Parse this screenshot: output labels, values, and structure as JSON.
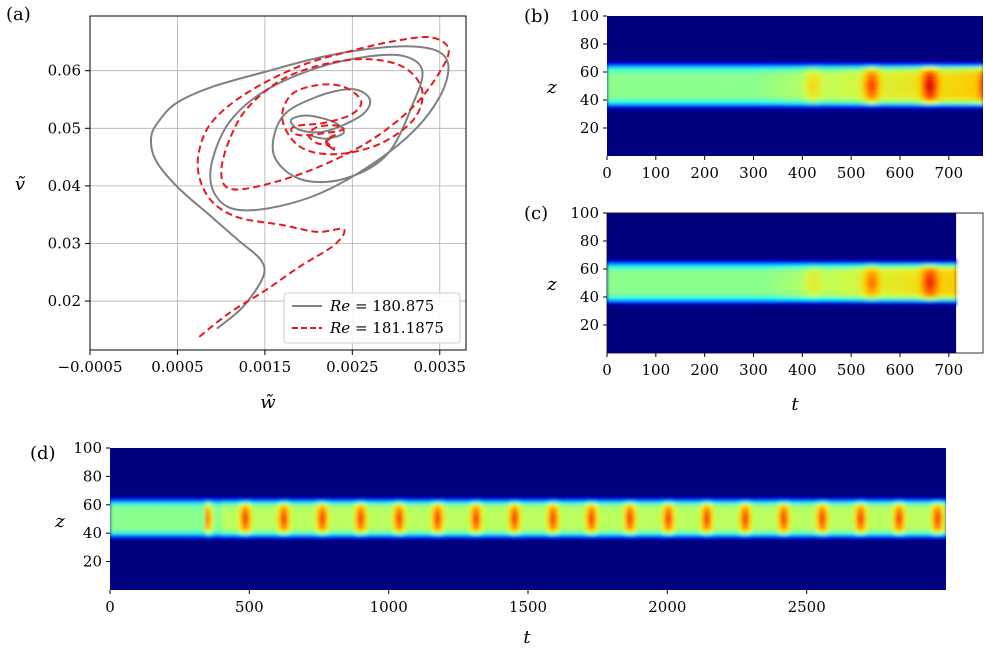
{
  "chart_data": [
    {
      "panel_label": "(a)",
      "type": "line",
      "xlabel": "w̃",
      "ylabel": "ṽ",
      "xlim": [
        -0.0005,
        0.0038
      ],
      "ylim": [
        0.0115,
        0.0695
      ],
      "xticks": [
        -0.0005,
        0.0005,
        0.0015,
        0.0025,
        0.0035
      ],
      "xtick_labels": [
        "−0.0005",
        "0.0005",
        "0.0015",
        "0.0025",
        "0.0035"
      ],
      "yticks": [
        0.02,
        0.03,
        0.04,
        0.05,
        0.06
      ],
      "ytick_labels": [
        "0.02",
        "0.03",
        "0.04",
        "0.05",
        "0.06"
      ],
      "grid": true,
      "legend_position": "lower-right",
      "series": [
        {
          "name": "Re = 180.875",
          "legend_label": "= 180.875",
          "color": "#808080",
          "style": "solid",
          "x": [
            0.00095,
            0.00125,
            0.00148,
            0.00145,
            0.0012,
            0.0009,
            0.0005,
            0.00025,
            0.0002,
            0.0003,
            0.0005,
            0.0009,
            0.0015,
            0.0021,
            0.0027,
            0.0032,
            0.0035,
            0.0036,
            0.0035,
            0.0032,
            0.0027,
            0.0021,
            0.0015,
            0.0011,
            0.0009,
            0.0009,
            0.0011,
            0.0015,
            0.0021,
            0.0027,
            0.0031,
            0.0033,
            0.0032,
            0.0029,
            0.0024,
            0.0019,
            0.0016,
            0.0017,
            0.0021,
            0.0025,
            0.0027,
            0.0026,
            0.0022,
            0.0019,
            0.0018,
            0.002,
            0.0023,
            0.0024,
            0.0022,
            0.002
          ],
          "y": [
            0.0152,
            0.019,
            0.0242,
            0.0272,
            0.0305,
            0.0345,
            0.0398,
            0.0445,
            0.0485,
            0.0515,
            0.0545,
            0.0572,
            0.0598,
            0.0622,
            0.0638,
            0.0642,
            0.0632,
            0.0605,
            0.0555,
            0.0495,
            0.0435,
            0.0385,
            0.036,
            0.0362,
            0.0395,
            0.0445,
            0.0512,
            0.0565,
            0.0605,
            0.0625,
            0.0625,
            0.06,
            0.0545,
            0.0455,
            0.0412,
            0.0412,
            0.0455,
            0.052,
            0.0555,
            0.0568,
            0.055,
            0.0522,
            0.0495,
            0.0497,
            0.0515,
            0.0522,
            0.051,
            0.0492,
            0.0482,
            0.0488
          ]
        },
        {
          "name": "Re = 181.1875",
          "legend_label": "= 181.1875",
          "color": "#e8181c",
          "style": "dashed",
          "x": [
            0.00075,
            0.0011,
            0.0015,
            0.0019,
            0.0023,
            0.0024,
            0.0021,
            0.0017,
            0.0012,
            0.0009,
            0.00075,
            0.00075,
            0.0009,
            0.0013,
            0.0019,
            0.0025,
            0.003,
            0.0034,
            0.0036,
            0.0035,
            0.0032,
            0.0027,
            0.0021,
            0.0015,
            0.0011,
            0.001,
            0.0011,
            0.0013,
            0.0017,
            0.0022,
            0.0027,
            0.0031,
            0.0033,
            0.0032,
            0.0028,
            0.0023,
            0.0019,
            0.0017,
            0.0018,
            0.0021,
            0.0024,
            0.0026,
            0.0025,
            0.0022,
            0.0019,
            0.0018,
            0.0019,
            0.0022,
            0.0024,
            0.0023,
            0.0021,
            0.002,
            0.0021,
            0.0022,
            0.0023,
            0.0022,
            0.0023,
            0.0022,
            0.0023
          ],
          "y": [
            0.0138,
            0.018,
            0.0218,
            0.026,
            0.0298,
            0.0325,
            0.032,
            0.0332,
            0.0345,
            0.0372,
            0.0415,
            0.0462,
            0.0512,
            0.0562,
            0.0608,
            0.0635,
            0.0652,
            0.0658,
            0.0638,
            0.0598,
            0.0538,
            0.0478,
            0.0432,
            0.0402,
            0.0395,
            0.0425,
            0.0482,
            0.0535,
            0.0585,
            0.0612,
            0.062,
            0.0605,
            0.0565,
            0.0515,
            0.0472,
            0.0455,
            0.0468,
            0.0515,
            0.0558,
            0.0575,
            0.0572,
            0.0548,
            0.0525,
            0.051,
            0.0505,
            0.0498,
            0.0488,
            0.0492,
            0.0498,
            0.0505,
            0.0502,
            0.0488,
            0.0474,
            0.0472,
            0.0462,
            0.0475,
            0.0488,
            0.0478,
            0.0465
          ]
        }
      ]
    },
    {
      "panel_label": "(b)",
      "type": "heatmap",
      "xlabel": "",
      "ylabel": "z",
      "xlim": [
        0,
        770
      ],
      "ylim": [
        0,
        100
      ],
      "xticks": [
        0,
        100,
        200,
        300,
        400,
        500,
        600,
        700
      ],
      "xtick_labels": [
        "0",
        "100",
        "200",
        "300",
        "400",
        "500",
        "600",
        "700"
      ],
      "yticks": [
        20,
        40,
        60,
        80,
        100
      ],
      "ytick_labels": [
        "20",
        "40",
        "60",
        "80",
        "100"
      ],
      "colormap": "jet",
      "band_z": [
        35,
        66
      ],
      "data_end_t": 770
    },
    {
      "panel_label": "(c)",
      "type": "heatmap",
      "xlabel": "t",
      "ylabel": "z",
      "xlim": [
        0,
        770
      ],
      "ylim": [
        0,
        100
      ],
      "xticks": [
        0,
        100,
        200,
        300,
        400,
        500,
        600,
        700
      ],
      "xtick_labels": [
        "0",
        "100",
        "200",
        "300",
        "400",
        "500",
        "600",
        "700"
      ],
      "yticks": [
        20,
        40,
        60,
        80,
        100
      ],
      "ytick_labels": [
        "20",
        "40",
        "60",
        "80",
        "100"
      ],
      "colormap": "jet",
      "band_z": [
        36,
        65
      ],
      "data_end_t": 715
    },
    {
      "panel_label": "(d)",
      "type": "heatmap",
      "xlabel": "t",
      "ylabel": "z",
      "xlim": [
        0,
        3000
      ],
      "ylim": [
        0,
        100
      ],
      "xticks": [
        0,
        500,
        1000,
        1500,
        2000,
        2500
      ],
      "xtick_labels": [
        "0",
        "500",
        "1000",
        "1500",
        "2000",
        "2500"
      ],
      "yticks": [
        20,
        40,
        60,
        80,
        100
      ],
      "ytick_labels": [
        "20",
        "40",
        "60",
        "80",
        "100"
      ],
      "colormap": "jet",
      "band_z": [
        37,
        64
      ],
      "data_end_t": 3000
    }
  ],
  "colors": {
    "background": "#00007f",
    "grid": "#b0b0b0"
  }
}
